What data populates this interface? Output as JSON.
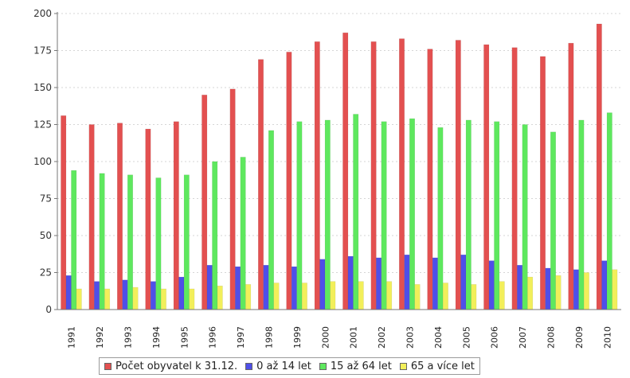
{
  "chart_data": {
    "type": "bar",
    "categories": [
      "1991",
      "1992",
      "1993",
      "1994",
      "1995",
      "1996",
      "1997",
      "1998",
      "1999",
      "2000",
      "2001",
      "2002",
      "2003",
      "2004",
      "2005",
      "2006",
      "2007",
      "2008",
      "2009",
      "2010"
    ],
    "series": [
      {
        "name": "Počet obyvatel k 31.12.",
        "color": "#e35050",
        "values": [
          131,
          125,
          126,
          122,
          127,
          145,
          149,
          169,
          174,
          181,
          187,
          181,
          183,
          176,
          182,
          179,
          177,
          171,
          180,
          193
        ]
      },
      {
        "name": "0 až 14 let",
        "color": "#4f4fe8",
        "values": [
          23,
          19,
          20,
          19,
          22,
          30,
          29,
          30,
          29,
          34,
          36,
          35,
          37,
          35,
          37,
          33,
          30,
          28,
          27,
          33
        ]
      },
      {
        "name": "15 až 64 let",
        "color": "#5ee85e",
        "values": [
          94,
          92,
          91,
          89,
          91,
          100,
          103,
          121,
          127,
          128,
          132,
          127,
          129,
          123,
          128,
          127,
          125,
          120,
          128,
          133
        ]
      },
      {
        "name": "65 a více let",
        "color": "#f2ef5a",
        "values": [
          14,
          14,
          15,
          14,
          14,
          16,
          17,
          18,
          18,
          19,
          19,
          19,
          17,
          18,
          17,
          19,
          22,
          23,
          25,
          27
        ]
      }
    ],
    "ylim": [
      0,
      200
    ],
    "yticks": [
      0,
      25,
      50,
      75,
      100,
      125,
      150,
      175,
      200
    ],
    "grid": "horizontal dashed",
    "legend_position": "bottom"
  }
}
